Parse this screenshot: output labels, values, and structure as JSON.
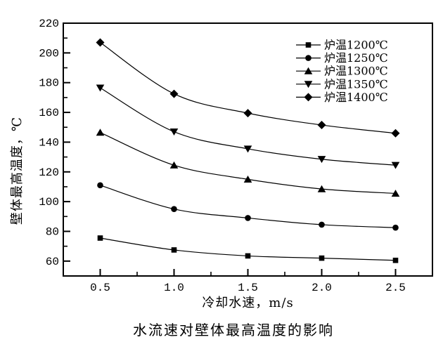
{
  "figure": {
    "background": "#ffffff",
    "foreground": "#000000",
    "caption": "水流速对壁体最高温度的影响"
  },
  "chart_data": {
    "type": "line",
    "title": "水流速对壁体最高温度的影响",
    "xlabel": "冷却水速，m/s",
    "ylabel": "壁体最高温度，℃",
    "x": [
      0.5,
      1.0,
      1.5,
      2.0,
      2.5
    ],
    "x_tick_labels": [
      "0.5",
      "1.0",
      "1.5",
      "2.0",
      "2.5"
    ],
    "y_tick_values": [
      60,
      80,
      100,
      120,
      140,
      160,
      180,
      200,
      220
    ],
    "xlim": [
      0.25,
      2.75
    ],
    "ylim": [
      50,
      220
    ],
    "x_minor_step": 0.25,
    "y_minor_step": 10,
    "grid": false,
    "line_color": "#000000",
    "legend": {
      "position": "top-right-inside",
      "entries": [
        "炉温1200℃",
        "炉温1250℃",
        "炉温1300℃",
        "炉温1350℃",
        "炉温1400℃"
      ]
    },
    "series": [
      {
        "name": "炉温1200℃",
        "marker": "square",
        "color": "#000000",
        "values": [
          75.5,
          67.5,
          63.5,
          62,
          60.5
        ]
      },
      {
        "name": "炉温1250℃",
        "marker": "circle",
        "color": "#000000",
        "values": [
          111,
          95,
          89,
          84.5,
          82.5
        ]
      },
      {
        "name": "炉温1300℃",
        "marker": "triangle-up",
        "color": "#000000",
        "values": [
          146.5,
          124.5,
          115,
          108.5,
          105.5
        ]
      },
      {
        "name": "炉温1350℃",
        "marker": "triangle-down",
        "color": "#000000",
        "values": [
          176.5,
          147,
          135.5,
          128.5,
          124.5
        ]
      },
      {
        "name": "炉温1400℃",
        "marker": "diamond",
        "color": "#000000",
        "values": [
          207,
          172.5,
          159.5,
          151.5,
          146
        ]
      }
    ]
  }
}
